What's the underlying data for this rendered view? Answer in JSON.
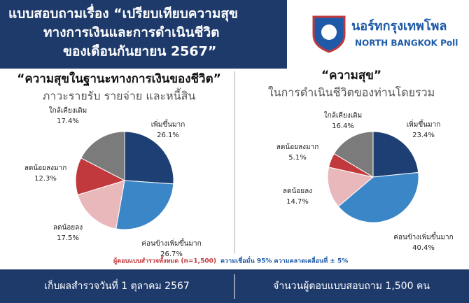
{
  "header": {
    "title_lines": [
      "แบบสอบถามเรื่อง “เปรียบเทียบความสุข",
      "ทางการเงินและการดำเนินชีวิต",
      "ของเดือนกันยายน 2567”"
    ],
    "logo_thai": "นอร์ทกรุงเทพโพล",
    "logo_english": "NORTH BANGKOK Poll"
  },
  "chart_data": [
    {
      "type": "pie",
      "title": "“ความสุขในฐานะทางการเงินของชีวิต”",
      "subtitle": "ภาวะรายรับ รายจ่าย และหนี้สิน",
      "categories": [
        "เพิ่มขึ้นมาก",
        "ค่อนข้างเพิ่มขึ้นมาก",
        "ลดน้อยลง",
        "ลดน้อยลงมาก",
        "ใกล้เคียงเดิม"
      ],
      "values": [
        26.1,
        26.7,
        17.5,
        12.3,
        17.4
      ],
      "value_labels": [
        "26.1%",
        "26.7%",
        "17.5%",
        "12.3%",
        "17.4%"
      ],
      "colors": [
        "#1d3f73",
        "#3b86c6",
        "#e9b8bb",
        "#c1393d",
        "#7b7b7b"
      ]
    },
    {
      "type": "pie",
      "title": "“ความสุข”",
      "subtitle": "ในการดำเนินชีวิตของท่านโดยรวม",
      "categories": [
        "เพิ่มขึ้นมาก",
        "ค่อนข้างเพิ่มขึ้นมาก",
        "ลดน้อยลง",
        "ลดน้อยลงมาก",
        "ใกล้เคียงเดิม"
      ],
      "values": [
        23.4,
        40.4,
        14.7,
        5.1,
        16.4
      ],
      "value_labels": [
        "23.4%",
        "40.4%",
        "14.7%",
        "5.1%",
        "16.4%"
      ],
      "colors": [
        "#1d3f73",
        "#3b86c6",
        "#e9b8bb",
        "#c1393d",
        "#7b7b7b"
      ]
    }
  ],
  "note": {
    "sample": "ผู้ตอบแบบสำรวจทั้งหมด (n=1,500)",
    "confidence": "ความเชื่อมั่น 95% ความคลาดเคลื่อนที่ ± 5%"
  },
  "footer": {
    "date": "เก็บผลสำรวจวันที่ 1 ตุลาคม 2567",
    "respondents": "จำนวนผู้ตอบแบบสอบถาม 1,500 คน"
  }
}
